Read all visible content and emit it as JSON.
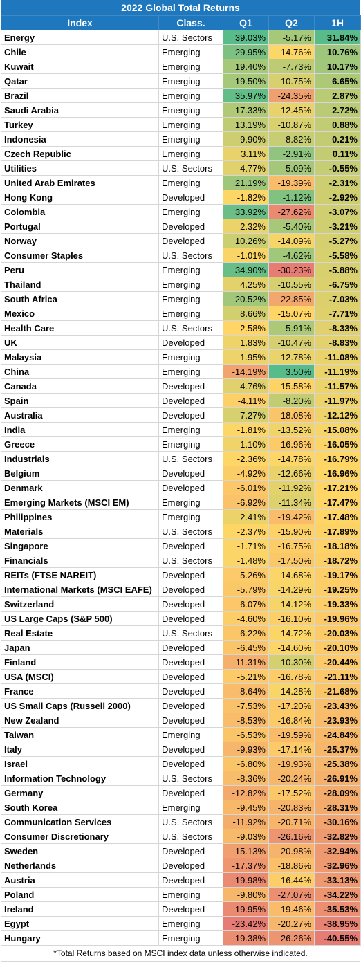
{
  "table": {
    "title": "2022 Global Total Returns",
    "headers": [
      "Index",
      "Class.",
      "Q1",
      "Q2",
      "1H"
    ],
    "footnote": "*Total Returns based on MSCI index data unless otherwise indicated.",
    "rows": [
      [
        "Energy",
        "U.S. Sectors",
        "39.03%",
        "-5.17%",
        "31.84%"
      ],
      [
        "Chile",
        "Emerging",
        "29.95%",
        "-14.76%",
        "10.76%"
      ],
      [
        "Kuwait",
        "Emerging",
        "19.40%",
        "-7.73%",
        "10.17%"
      ],
      [
        "Qatar",
        "Emerging",
        "19.50%",
        "-10.75%",
        "6.65%"
      ],
      [
        "Brazil",
        "Emerging",
        "35.97%",
        "-24.35%",
        "2.87%"
      ],
      [
        "Saudi Arabia",
        "Emerging",
        "17.33%",
        "-12.45%",
        "2.72%"
      ],
      [
        "Turkey",
        "Emerging",
        "13.19%",
        "-10.87%",
        "0.88%"
      ],
      [
        "Indonesia",
        "Emerging",
        "9.90%",
        "-8.82%",
        "0.21%"
      ],
      [
        "Czech Republic",
        "Emerging",
        "3.11%",
        "-2.91%",
        "0.11%"
      ],
      [
        "Utilities",
        "U.S. Sectors",
        "4.77%",
        "-5.09%",
        "-0.55%"
      ],
      [
        "United Arab Emirates",
        "Emerging",
        "21.19%",
        "-19.39%",
        "-2.31%"
      ],
      [
        "Hong Kong",
        "Developed",
        "-1.82%",
        "-1.12%",
        "-2.92%"
      ],
      [
        "Colombia",
        "Emerging",
        "33.92%",
        "-27.62%",
        "-3.07%"
      ],
      [
        "Portugal",
        "Developed",
        "2.32%",
        "-5.40%",
        "-3.21%"
      ],
      [
        "Norway",
        "Developed",
        "10.26%",
        "-14.09%",
        "-5.27%"
      ],
      [
        "Consumer Staples",
        "U.S. Sectors",
        "-1.01%",
        "-4.62%",
        "-5.58%"
      ],
      [
        "Peru",
        "Emerging",
        "34.90%",
        "-30.23%",
        "-5.88%"
      ],
      [
        "Thailand",
        "Emerging",
        "4.25%",
        "-10.55%",
        "-6.75%"
      ],
      [
        "South Africa",
        "Emerging",
        "20.52%",
        "-22.85%",
        "-7.03%"
      ],
      [
        "Mexico",
        "Emerging",
        "8.66%",
        "-15.07%",
        "-7.71%"
      ],
      [
        "Health Care",
        "U.S. Sectors",
        "-2.58%",
        "-5.91%",
        "-8.33%"
      ],
      [
        "UK",
        "Developed",
        "1.83%",
        "-10.47%",
        "-8.83%"
      ],
      [
        "Malaysia",
        "Emerging",
        "1.95%",
        "-12.78%",
        "-11.08%"
      ],
      [
        "China",
        "Emerging",
        "-14.19%",
        "3.50%",
        "-11.19%"
      ],
      [
        "Canada",
        "Developed",
        "4.76%",
        "-15.58%",
        "-11.57%"
      ],
      [
        "Spain",
        "Developed",
        "-4.11%",
        "-8.20%",
        "-11.97%"
      ],
      [
        "Australia",
        "Developed",
        "7.27%",
        "-18.08%",
        "-12.12%"
      ],
      [
        "India",
        "Emerging",
        "-1.81%",
        "-13.52%",
        "-15.08%"
      ],
      [
        "Greece",
        "Emerging",
        "1.10%",
        "-16.96%",
        "-16.05%"
      ],
      [
        "Industrials",
        "U.S. Sectors",
        "-2.36%",
        "-14.78%",
        "-16.79%"
      ],
      [
        "Belgium",
        "Developed",
        "-4.92%",
        "-12.66%",
        "-16.96%"
      ],
      [
        "Denmark",
        "Developed",
        "-6.01%",
        "-11.92%",
        "-17.21%"
      ],
      [
        "Emerging Markets (MSCI EM)",
        "Emerging",
        "-6.92%",
        "-11.34%",
        "-17.47%"
      ],
      [
        "Philippines",
        "Emerging",
        "2.41%",
        "-19.42%",
        "-17.48%"
      ],
      [
        "Materials",
        "U.S. Sectors",
        "-2.37%",
        "-15.90%",
        "-17.89%"
      ],
      [
        "Singapore",
        "Developed",
        "-1.71%",
        "-16.75%",
        "-18.18%"
      ],
      [
        "Financials",
        "U.S. Sectors",
        "-1.48%",
        "-17.50%",
        "-18.72%"
      ],
      [
        "REITs (FTSE NAREIT)",
        "Developed",
        "-5.26%",
        "-14.68%",
        "-19.17%"
      ],
      [
        "International Markets (MSCI EAFE)",
        "Developed",
        "-5.79%",
        "-14.29%",
        "-19.25%"
      ],
      [
        "Switzerland",
        "Developed",
        "-6.07%",
        "-14.12%",
        "-19.33%"
      ],
      [
        "US Large Caps (S&P 500)",
        "Developed",
        "-4.60%",
        "-16.10%",
        "-19.96%"
      ],
      [
        "Real Estate",
        "U.S. Sectors",
        "-6.22%",
        "-14.72%",
        "-20.03%"
      ],
      [
        "Japan",
        "Developed",
        "-6.45%",
        "-14.60%",
        "-20.10%"
      ],
      [
        "Finland",
        "Developed",
        "-11.31%",
        "-10.30%",
        "-20.44%"
      ],
      [
        "USA (MSCI)",
        "Developed",
        "-5.21%",
        "-16.78%",
        "-21.11%"
      ],
      [
        "France",
        "Developed",
        "-8.64%",
        "-14.28%",
        "-21.68%"
      ],
      [
        "US Small Caps (Russell 2000)",
        "Developed",
        "-7.53%",
        "-17.20%",
        "-23.43%"
      ],
      [
        "New Zealand",
        "Developed",
        "-8.53%",
        "-16.84%",
        "-23.93%"
      ],
      [
        "Taiwan",
        "Emerging",
        "-6.53%",
        "-19.59%",
        "-24.84%"
      ],
      [
        "Italy",
        "Developed",
        "-9.93%",
        "-17.14%",
        "-25.37%"
      ],
      [
        "Israel",
        "Developed",
        "-6.80%",
        "-19.93%",
        "-25.38%"
      ],
      [
        "Information Technology",
        "U.S. Sectors",
        "-8.36%",
        "-20.24%",
        "-26.91%"
      ],
      [
        "Germany",
        "Developed",
        "-12.82%",
        "-17.52%",
        "-28.09%"
      ],
      [
        "South Korea",
        "Emerging",
        "-9.45%",
        "-20.83%",
        "-28.31%"
      ],
      [
        "Communication Services",
        "U.S. Sectors",
        "-11.92%",
        "-20.71%",
        "-30.16%"
      ],
      [
        "Consumer Discretionary",
        "U.S. Sectors",
        "-9.03%",
        "-26.16%",
        "-32.82%"
      ],
      [
        "Sweden",
        "Developed",
        "-15.13%",
        "-20.98%",
        "-32.94%"
      ],
      [
        "Netherlands",
        "Developed",
        "-17.37%",
        "-18.86%",
        "-32.96%"
      ],
      [
        "Austria",
        "Developed",
        "-19.98%",
        "-16.44%",
        "-33.13%"
      ],
      [
        "Poland",
        "Emerging",
        "-9.80%",
        "-27.07%",
        "-34.22%"
      ],
      [
        "Ireland",
        "Developed",
        "-19.95%",
        "-19.46%",
        "-35.53%"
      ],
      [
        "Egypt",
        "Emerging",
        "-23.42%",
        "-20.27%",
        "-38.95%"
      ],
      [
        "Hungary",
        "Emerging",
        "-19.38%",
        "-26.26%",
        "-40.55%"
      ]
    ]
  },
  "colors": {
    "header_bg": "#1f78bd",
    "scale_low": "#e67c73",
    "scale_mid": "#ffd666",
    "scale_high": "#57bb8a"
  }
}
